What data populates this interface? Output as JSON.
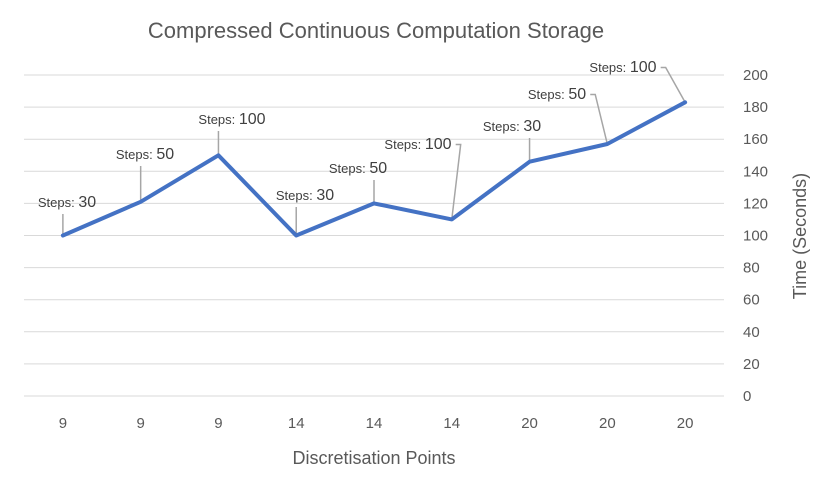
{
  "chart_data": {
    "type": "line",
    "title": "Compressed Continuous Computation Storage",
    "xlabel": "Discretisation Points",
    "ylabel": "Time (Seconds)",
    "categories": [
      "9",
      "9",
      "9",
      "14",
      "14",
      "14",
      "20",
      "20",
      "20"
    ],
    "series": [
      {
        "values": [
          100,
          121,
          150,
          100,
          120,
          110,
          146,
          157,
          183
        ],
        "color": "#4472c4"
      }
    ],
    "data_labels": [
      {
        "prefix": "Steps:",
        "value": "30"
      },
      {
        "prefix": "Steps:",
        "value": "50"
      },
      {
        "prefix": "Steps:",
        "value": "100"
      },
      {
        "prefix": "Steps:",
        "value": "30"
      },
      {
        "prefix": "Steps:",
        "value": "50"
      },
      {
        "prefix": "Steps:",
        "value": "100"
      },
      {
        "prefix": "Steps:",
        "value": "30"
      },
      {
        "prefix": "Steps:",
        "value": "50"
      },
      {
        "prefix": "Steps:",
        "value": "100"
      }
    ],
    "ylim": [
      0,
      200
    ],
    "yticks": [
      0,
      20,
      40,
      60,
      80,
      100,
      120,
      140,
      160,
      180,
      200
    ],
    "y_axis_side": "right",
    "grid": true,
    "legend": "none"
  }
}
